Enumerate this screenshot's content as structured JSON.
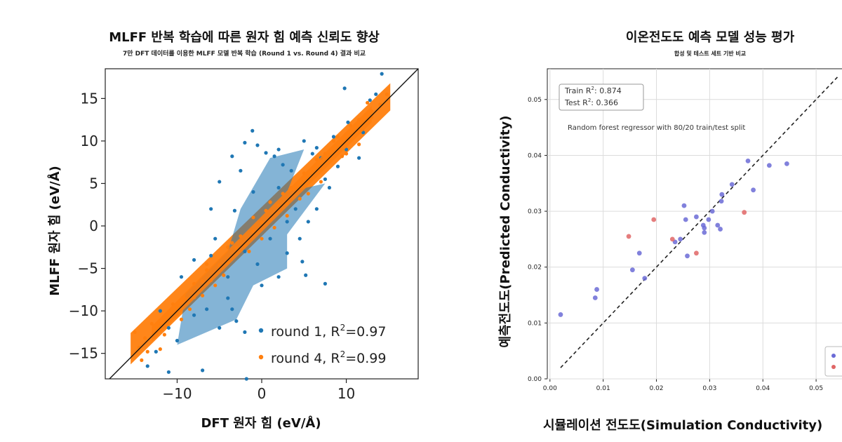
{
  "chart_data": [
    {
      "type": "scatter",
      "title": "MLFF 반복 학습에 따른 원자 힘 예측 신뢰도 향상",
      "subtitle": "7만 DFT 데이터를 이용한 MLFF 모델 반복 학습 (Round 1 vs. Round 4) 결과 비교",
      "xlabel": "DFT 원자 힘 (eV/Å)",
      "ylabel": "MLFF 원자 힘 (eV/Å)",
      "xlim": [
        -18.5,
        18.5
      ],
      "ylim": [
        -18,
        18.5
      ],
      "xticks": [
        -10,
        0,
        10
      ],
      "yticks": [
        -15,
        -10,
        -5,
        0,
        5,
        10,
        15
      ],
      "grid": false,
      "legend_position": "bottom-right",
      "colors": {
        "round1": "#1f77b4",
        "round4": "#ff7f0e",
        "line": "#111111"
      },
      "series": [
        {
          "name_prefix": "round 1, R",
          "name_sup": "2",
          "name_suffix": "=0.97",
          "color": "#1f77b4",
          "points": [
            [
              14.2,
              17.9
            ],
            [
              9.8,
              16.2
            ],
            [
              -1.1,
              11.2
            ],
            [
              -0.5,
              9.5
            ],
            [
              -2,
              9.8
            ],
            [
              0.5,
              8.6
            ],
            [
              -3.5,
              8.2
            ],
            [
              1.5,
              8.2
            ],
            [
              -5,
              5.2
            ],
            [
              2.5,
              7.2
            ],
            [
              -2.5,
              6.5
            ],
            [
              3.5,
              6.5
            ],
            [
              6.5,
              9.2
            ],
            [
              7,
              8
            ],
            [
              8.5,
              10.5
            ],
            [
              10.2,
              12.2
            ],
            [
              12.8,
              14.8
            ],
            [
              13.5,
              15.5
            ],
            [
              -3.2,
              1.8
            ],
            [
              4.5,
              -1.5
            ],
            [
              5.5,
              0.5
            ],
            [
              3,
              -3.2
            ],
            [
              4.8,
              -4.2
            ],
            [
              6.5,
              2
            ],
            [
              2,
              -6
            ],
            [
              -4,
              -8.5
            ],
            [
              -3,
              -11.2
            ],
            [
              -6.5,
              -9.8
            ],
            [
              -8,
              -10.5
            ],
            [
              -10,
              -13.5
            ],
            [
              -12.5,
              -14.8
            ],
            [
              -13.5,
              -16.5
            ],
            [
              -11,
              -17.2
            ],
            [
              -7,
              -17
            ],
            [
              -1.8,
              -18
            ],
            [
              5.2,
              -5.8
            ],
            [
              7.5,
              -6.8
            ],
            [
              -3.5,
              -9.8
            ],
            [
              -0.5,
              -4.5
            ],
            [
              -6,
              2
            ],
            [
              9,
              7
            ],
            [
              -8,
              -4
            ],
            [
              1,
              -1.5
            ],
            [
              -2,
              -3
            ],
            [
              3,
              0.5
            ],
            [
              -9.5,
              -6
            ],
            [
              8,
              4.5
            ],
            [
              11.5,
              8
            ],
            [
              -5.5,
              -1.5
            ],
            [
              6,
              8.5
            ],
            [
              -1,
              4
            ],
            [
              2,
              4.5
            ],
            [
              -4,
              -6
            ],
            [
              4,
              2
            ],
            [
              -7,
              -7
            ],
            [
              7.5,
              5.5
            ],
            [
              0,
              -7
            ],
            [
              -5,
              -12
            ],
            [
              -2,
              -12.5
            ],
            [
              5,
              10
            ],
            [
              2,
              9
            ],
            [
              -6,
              -3.5
            ],
            [
              10,
              9
            ],
            [
              12,
              11
            ],
            [
              -11,
              -12
            ],
            [
              -12,
              -10
            ]
          ]
        },
        {
          "name_prefix": "round 4, R",
          "name_sup": "2",
          "name_suffix": "=0.99",
          "color": "#ff7f0e",
          "points": [
            [
              -14.5,
              -14.3
            ],
            [
              -13.5,
              -14.8
            ],
            [
              -12,
              -11.5
            ],
            [
              -11,
              -11.2
            ],
            [
              -10,
              -10.4
            ],
            [
              -9,
              -8.6
            ],
            [
              -8,
              -8.4
            ],
            [
              -7,
              -6.5
            ],
            [
              -6,
              -6.4
            ],
            [
              -5,
              -4.6
            ],
            [
              -4,
              -4.3
            ],
            [
              -3,
              -2.6
            ],
            [
              -2,
              -2.3
            ],
            [
              -1,
              -0.6
            ],
            [
              0,
              0.4
            ],
            [
              1,
              0.7
            ],
            [
              2,
              2.4
            ],
            [
              3,
              2.6
            ],
            [
              4,
              4.4
            ],
            [
              5,
              4.7
            ],
            [
              6,
              6.3
            ],
            [
              7,
              6.8
            ],
            [
              8,
              8.4
            ],
            [
              9,
              8.8
            ],
            [
              10,
              10.3
            ],
            [
              11,
              10.9
            ],
            [
              12,
              12.2
            ],
            [
              13,
              12.8
            ],
            [
              14,
              14.3
            ],
            [
              14.8,
              15.5
            ],
            [
              -15,
              -12.5
            ],
            [
              -11.5,
              -12.8
            ],
            [
              -8.5,
              -9.8
            ],
            [
              -6.5,
              -5.2
            ],
            [
              -4.5,
              -5.8
            ],
            [
              -3.5,
              -2
            ],
            [
              -1.5,
              -3
            ],
            [
              0.5,
              1.8
            ],
            [
              1.5,
              -0.2
            ],
            [
              3.5,
              4.5
            ],
            [
              5.5,
              3.8
            ],
            [
              7.5,
              8.5
            ],
            [
              9.5,
              8.2
            ],
            [
              11.5,
              12.5
            ],
            [
              13,
              13.5
            ],
            [
              10.5,
              11.8
            ],
            [
              -6.5,
              -4.5
            ],
            [
              -12,
              -14.5
            ],
            [
              -13,
              -11.5
            ],
            [
              -9.5,
              -11
            ],
            [
              6.5,
              7.8
            ],
            [
              4.5,
              3.2
            ],
            [
              2.5,
              3.8
            ],
            [
              -2.5,
              -1.2
            ],
            [
              -5.5,
              -7
            ],
            [
              11.5,
              9.6
            ],
            [
              -13.8,
              -13.2
            ],
            [
              8.5,
              10
            ],
            [
              -10.5,
              -9.2
            ],
            [
              9,
              10.5
            ],
            [
              -4,
              -2.5
            ],
            [
              1,
              2.8
            ],
            [
              7,
              5.2
            ],
            [
              -8,
              -6.8
            ],
            [
              -14.2,
              -15.8
            ],
            [
              12.5,
              14.5
            ],
            [
              0,
              -1.5
            ],
            [
              -1,
              1
            ],
            [
              3,
              1.2
            ],
            [
              5,
              6.2
            ],
            [
              -7,
              -8.2
            ],
            [
              10,
              8.5
            ]
          ]
        }
      ]
    },
    {
      "type": "scatter",
      "title": "이온전도도 예측 모델 성능 평가",
      "subtitle": "합성 및 테스트 세트 기반 비교",
      "xlabel": "시뮬레이션 전도도(Simulation Conductivity)",
      "ylabel": "예측전도도(Predicted Conductivity)",
      "xlim": [
        -0.0005,
        0.0575
      ],
      "ylim": [
        0,
        0.0555
      ],
      "xticks": [
        0.0,
        0.01,
        0.02,
        0.03,
        0.04,
        0.05
      ],
      "xtick_labels": [
        "0.00",
        "0.01",
        "0.02",
        "0.03",
        "0.04",
        "0.05"
      ],
      "yticks": [
        0.0,
        0.01,
        0.02,
        0.03,
        0.04,
        0.05
      ],
      "ytick_labels": [
        "0.00",
        "0.01",
        "0.02",
        "0.03",
        "0.04",
        "0.05"
      ],
      "grid": true,
      "legend_position": "bottom-right",
      "colors": {
        "train": "#6b6bd6",
        "test": "#e06666",
        "diagonal": "#222222"
      },
      "stats_box": {
        "train_prefix": "Train R",
        "train_suffix": ": 0.874",
        "test_prefix": "Test R",
        "test_suffix": ": 0.366",
        "sup": "2"
      },
      "annotation": "Random forest regressor with 80/20 train/test split",
      "series": [
        {
          "role": "train",
          "color": "#6b6bd6",
          "points": [
            [
              0.002,
              0.0115
            ],
            [
              0.0085,
              0.0145
            ],
            [
              0.0088,
              0.016
            ],
            [
              0.0155,
              0.0195
            ],
            [
              0.0168,
              0.0225
            ],
            [
              0.0178,
              0.018
            ],
            [
              0.0235,
              0.0245
            ],
            [
              0.0245,
              0.025
            ],
            [
              0.0252,
              0.031
            ],
            [
              0.0255,
              0.0285
            ],
            [
              0.0258,
              0.022
            ],
            [
              0.0275,
              0.029
            ],
            [
              0.0288,
              0.0275
            ],
            [
              0.029,
              0.027
            ],
            [
              0.029,
              0.0262
            ],
            [
              0.0298,
              0.0285
            ],
            [
              0.0305,
              0.03
            ],
            [
              0.0315,
              0.0275
            ],
            [
              0.032,
              0.0268
            ],
            [
              0.0322,
              0.0318
            ],
            [
              0.0323,
              0.033
            ],
            [
              0.0342,
              0.0348
            ],
            [
              0.0372,
              0.039
            ],
            [
              0.0382,
              0.0338
            ],
            [
              0.0412,
              0.0382
            ],
            [
              0.0445,
              0.0385
            ]
          ]
        },
        {
          "role": "test",
          "color": "#e06666",
          "points": [
            [
              0.0148,
              0.0255
            ],
            [
              0.0195,
              0.0285
            ],
            [
              0.023,
              0.025
            ],
            [
              0.0275,
              0.0225
            ],
            [
              0.0365,
              0.0298
            ]
          ]
        }
      ]
    }
  ]
}
